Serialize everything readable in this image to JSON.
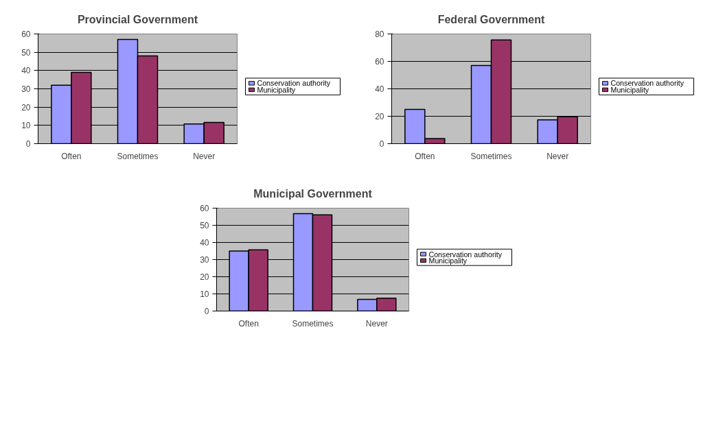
{
  "chart_data": [
    {
      "type": "bar",
      "title": "Provincial Government",
      "categories": [
        "Often",
        "Sometimes",
        "Never"
      ],
      "ylim": [
        0,
        60
      ],
      "yticks": [
        0,
        10,
        20,
        30,
        40,
        50,
        60
      ],
      "grid": "y",
      "legend": "right",
      "series": [
        {
          "name": "Conservation authority",
          "color": "#9999ff",
          "values": [
            32,
            57,
            10.8
          ]
        },
        {
          "name": "Municipality",
          "color": "#993366",
          "values": [
            39,
            48,
            11.6
          ]
        }
      ]
    },
    {
      "type": "bar",
      "title": "Federal Government",
      "categories": [
        "Often",
        "Sometimes",
        "Never"
      ],
      "ylim": [
        0,
        80
      ],
      "yticks": [
        0,
        20,
        40,
        60,
        80
      ],
      "grid": "y",
      "legend": "right",
      "series": [
        {
          "name": "Conservation authority",
          "color": "#9999ff",
          "values": [
            25,
            57,
            17.4
          ]
        },
        {
          "name": "Municipality",
          "color": "#993366",
          "values": [
            3.7,
            75.6,
            19.6
          ]
        }
      ]
    },
    {
      "type": "bar",
      "title": "Municipal Government",
      "categories": [
        "Often",
        "Sometimes",
        "Never"
      ],
      "ylim": [
        0,
        60
      ],
      "yticks": [
        0,
        10,
        20,
        30,
        40,
        50,
        60
      ],
      "grid": "y",
      "legend": "right",
      "series": [
        {
          "name": "Conservation authority",
          "color": "#9999ff",
          "values": [
            35,
            56.8,
            6.8
          ]
        },
        {
          "name": "Municipality",
          "color": "#993366",
          "values": [
            35.7,
            56.1,
            7.5
          ]
        }
      ]
    }
  ]
}
